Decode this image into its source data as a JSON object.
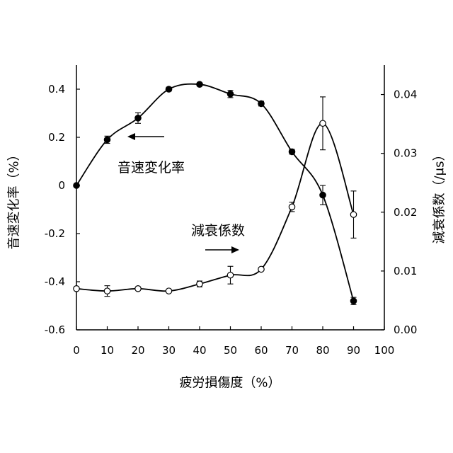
{
  "chart_data": {
    "type": "line",
    "title": "",
    "xlabel": "疲労損傷度（%）",
    "ylabel": "音速変化率（%）",
    "y2label": "減衰係数（/μs）",
    "xlim": [
      0,
      100
    ],
    "ylim": [
      -0.6,
      0.5
    ],
    "y2lim": [
      0,
      0.045
    ],
    "x_ticks": [
      {
        "value": 0,
        "label": "0"
      },
      {
        "value": 10,
        "label": "10"
      },
      {
        "value": 20,
        "label": "20"
      },
      {
        "value": 30,
        "label": "30"
      },
      {
        "value": 40,
        "label": "40"
      },
      {
        "value": 50,
        "label": "50"
      },
      {
        "value": 60,
        "label": "60"
      },
      {
        "value": 70,
        "label": "70"
      },
      {
        "value": 80,
        "label": "80"
      },
      {
        "value": 90,
        "label": "90"
      },
      {
        "value": 100,
        "label": "100"
      }
    ],
    "y_ticks": [
      {
        "value": 0.4,
        "label": "0.4"
      },
      {
        "value": 0.2,
        "label": "0.2"
      },
      {
        "value": 0,
        "label": "0"
      },
      {
        "value": -0.2,
        "label": "-0.2"
      },
      {
        "value": -0.4,
        "label": "-0.4"
      },
      {
        "value": -0.6,
        "label": "-0.6"
      }
    ],
    "y2_ticks": [
      {
        "value": 0.04,
        "label": "0.04"
      },
      {
        "value": 0.03,
        "label": "0.03"
      },
      {
        "value": 0.02,
        "label": "0.02"
      },
      {
        "value": 0.01,
        "label": "0.01"
      },
      {
        "value": 0,
        "label": "0.00"
      }
    ],
    "x": [
      0,
      10,
      20,
      30,
      40,
      50,
      60,
      70,
      80,
      90
    ],
    "series": [
      {
        "name": "音速変化率",
        "axis": "left",
        "marker": "filled-circle",
        "values": [
          0,
          0.19,
          0.28,
          0.4,
          0.42,
          0.38,
          0.34,
          0.14,
          -0.04,
          -0.48
        ],
        "errors": [
          0,
          0.015,
          0.022,
          0.008,
          0.006,
          0.015,
          0.01,
          0.01,
          0.04,
          0.015
        ]
      },
      {
        "name": "減衰係数",
        "axis": "right",
        "marker": "open-circle",
        "values": [
          0.007,
          0.0066,
          0.007,
          0.0066,
          0.0078,
          0.0093,
          0.0103,
          0.0209,
          0.0351,
          0.0196
        ],
        "errors": [
          0,
          0.0009,
          0,
          0,
          0.0005,
          0.0015,
          0,
          0.0008,
          0.0045,
          0.004
        ]
      }
    ],
    "annotations": [
      {
        "text": "音速変化率",
        "arrow": "left",
        "series": 0
      },
      {
        "text": "減衰係数",
        "arrow": "right",
        "series": 1
      }
    ],
    "grid": false,
    "legend": "none",
    "colors": {
      "line": "#000000",
      "filled_marker": "#000000",
      "open_marker_fill": "#ffffff",
      "background": "#ffffff"
    }
  }
}
